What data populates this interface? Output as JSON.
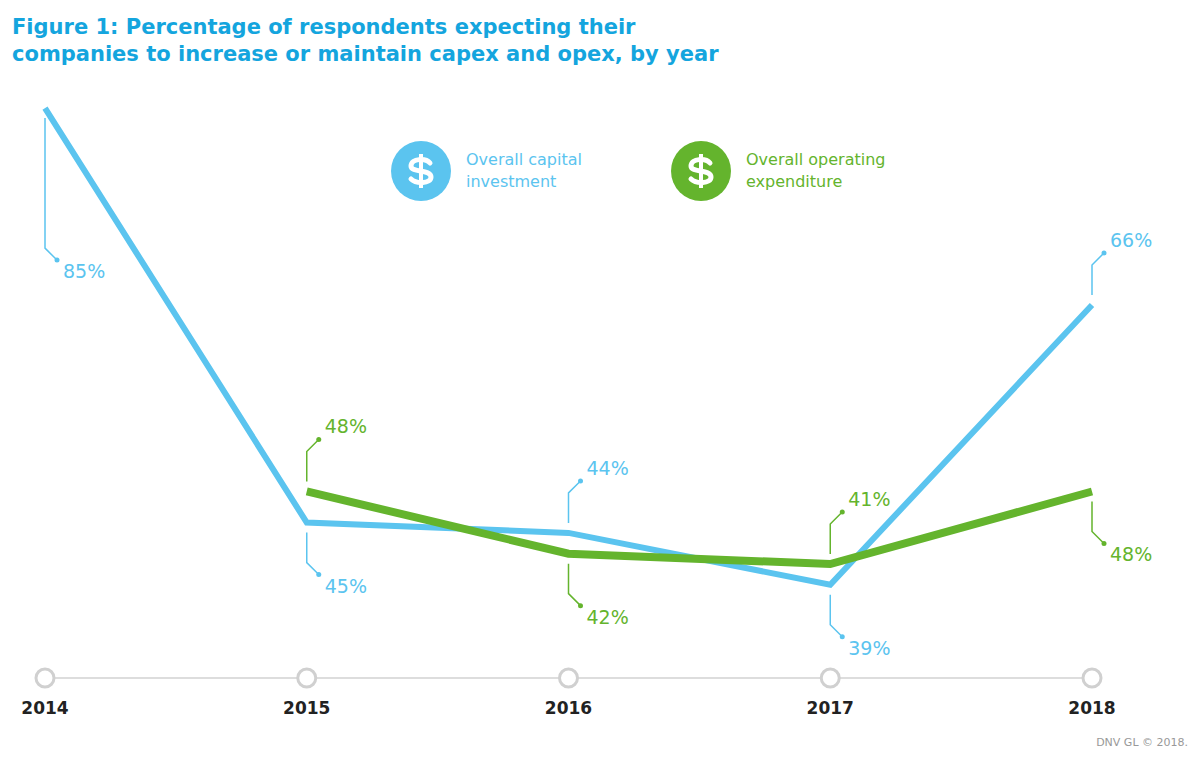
{
  "chart_data": {
    "type": "line",
    "title": "Figure 1: Percentage of respondents expecting their companies to increase or maintain capex and opex, by year",
    "source": "DNV GL © 2018.",
    "categories": [
      "2014",
      "2015",
      "2016",
      "2017",
      "2018"
    ],
    "series": [
      {
        "name": "Overall capital investment",
        "color": "#5bc4ef",
        "values": [
          85,
          45,
          44,
          39,
          66
        ],
        "value_labels": [
          "85%",
          "45%",
          "44%",
          "39%",
          "66%"
        ]
      },
      {
        "name": "Overall operating expenditure",
        "color": "#64b42d",
        "values": [
          null,
          48,
          42,
          41,
          48
        ],
        "value_labels": [
          null,
          "48%",
          "42%",
          "41%",
          "48%"
        ]
      }
    ],
    "ylim": [
      30,
      88
    ],
    "tick_labels": "x",
    "data_labels": true,
    "grid": false
  }
}
